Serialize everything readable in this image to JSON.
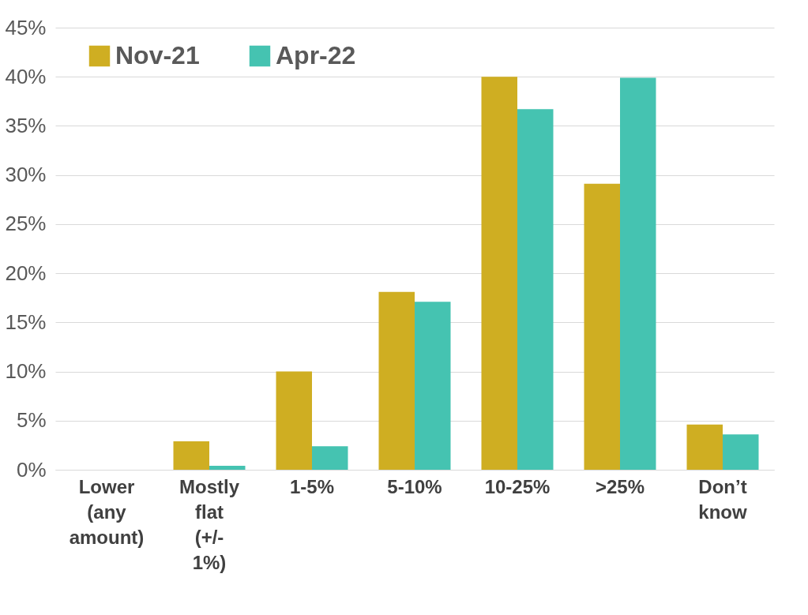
{
  "chart_data": {
    "type": "bar",
    "categories": [
      "Lower (any amount)",
      "Mostly flat (+/- 1%)",
      "1-5%",
      "5-10%",
      "10-25%",
      ">25%",
      "Don’t know"
    ],
    "series": [
      {
        "name": "Nov-21",
        "color": "#cfae22",
        "values": [
          0,
          2.9,
          10.0,
          18.1,
          40.0,
          29.1,
          4.6
        ]
      },
      {
        "name": "Apr-22",
        "color": "#45c3b1",
        "values": [
          0,
          0.4,
          2.4,
          17.1,
          36.7,
          39.9,
          3.6
        ]
      }
    ],
    "ylim": [
      0,
      45
    ],
    "yticks": [
      {
        "value": 0,
        "label": "0%"
      },
      {
        "value": 5,
        "label": "5%"
      },
      {
        "value": 10,
        "label": "10%"
      },
      {
        "value": 15,
        "label": "15%"
      },
      {
        "value": 20,
        "label": "20%"
      },
      {
        "value": 25,
        "label": "25%"
      },
      {
        "value": 30,
        "label": "30%"
      },
      {
        "value": 35,
        "label": "35%"
      },
      {
        "value": 40,
        "label": "40%"
      },
      {
        "value": 45,
        "label": "45%"
      }
    ],
    "grid": "y",
    "legend": "top left"
  }
}
